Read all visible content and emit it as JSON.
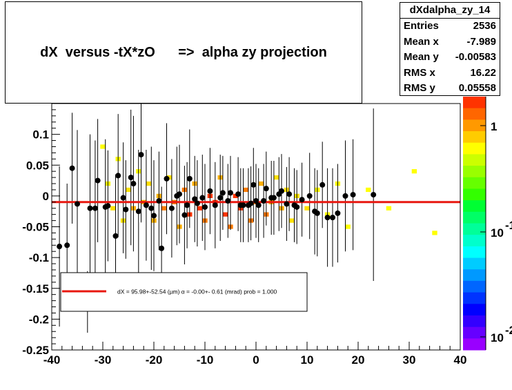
{
  "title": {
    "left": "dX  versus -tX*zO",
    "arrow": "=>",
    "right": "alpha zy projection"
  },
  "stats": {
    "name": "dXdalpha_zy_14",
    "rows": [
      {
        "label": "Entries",
        "value": "2536"
      },
      {
        "label": "Mean x",
        "value": "-7.989"
      },
      {
        "label": "Mean y",
        "value": "-0.00583"
      },
      {
        "label": "RMS x",
        "value": "16.22"
      },
      {
        "label": "RMS y",
        "value": "0.05558"
      }
    ]
  },
  "legend": {
    "text": "dX =   95.98+-52.54 (µm) α =   -0.00+- 0.61 (mrad) prob = 1.000"
  },
  "colors": {
    "fit_line": "#e8170f",
    "points": "#000000",
    "heat_low": "#ffff00",
    "heat_high": "#ff3300"
  },
  "colorbar": {
    "labels": [
      "1",
      "10",
      "10"
    ],
    "exponents": [
      "",
      "-1",
      "-2"
    ]
  },
  "chart_data": {
    "type": "scatter",
    "xlim": [
      -40,
      40
    ],
    "ylim": [
      -0.25,
      0.15
    ],
    "x_ticks": [
      "-40",
      "-30",
      "-20",
      "-10",
      "0",
      "10",
      "20",
      "30",
      "40"
    ],
    "y_ticks": [
      "-0.25",
      "-0.2",
      "-0.15",
      "-0.1",
      "-0.05",
      "0",
      "0.05",
      "0.1"
    ],
    "fit": {
      "slope": 0,
      "intercept": -0.01
    },
    "profile_points": [
      {
        "x": -38.5,
        "y": -0.082,
        "err": 0.13
      },
      {
        "x": -37.0,
        "y": -0.08,
        "err": 0.1
      },
      {
        "x": -36.0,
        "y": 0.045,
        "err": 0.09
      },
      {
        "x": -35.0,
        "y": -0.013,
        "err": 0.12
      },
      {
        "x": -33.0,
        "y": -0.172,
        "err": 0.05
      },
      {
        "x": -32.5,
        "y": -0.02,
        "err": 0.12
      },
      {
        "x": -31.5,
        "y": -0.02,
        "err": 0.11
      },
      {
        "x": -31.0,
        "y": 0.025,
        "err": 0.1
      },
      {
        "x": -29.5,
        "y": -0.018,
        "err": 0.11
      },
      {
        "x": -29.0,
        "y": -0.016,
        "err": 0.09
      },
      {
        "x": -27.5,
        "y": -0.065,
        "err": 0.1
      },
      {
        "x": -27.0,
        "y": 0.033,
        "err": 0.1
      },
      {
        "x": -26.0,
        "y": -0.003,
        "err": 0.09
      },
      {
        "x": -25.5,
        "y": -0.022,
        "err": 0.08
      },
      {
        "x": -24.5,
        "y": 0.03,
        "err": 0.11
      },
      {
        "x": -24.0,
        "y": 0.02,
        "err": 0.11
      },
      {
        "x": -23.0,
        "y": -0.025,
        "err": 0.1
      },
      {
        "x": -22.5,
        "y": 0.067,
        "err": 0.11
      },
      {
        "x": -21.5,
        "y": -0.015,
        "err": 0.09
      },
      {
        "x": -20.5,
        "y": -0.02,
        "err": 0.1
      },
      {
        "x": -20.0,
        "y": -0.032,
        "err": 0.09
      },
      {
        "x": -19.0,
        "y": -0.008,
        "err": 0.08
      },
      {
        "x": -18.5,
        "y": -0.085,
        "err": 0.1
      },
      {
        "x": -17.5,
        "y": 0.028,
        "err": 0.09
      },
      {
        "x": -16.5,
        "y": -0.02,
        "err": 0.08
      },
      {
        "x": -15.5,
        "y": 0.0,
        "err": 0.08
      },
      {
        "x": -15.0,
        "y": 0.003,
        "err": 0.08
      },
      {
        "x": -14.0,
        "y": -0.031,
        "err": 0.08
      },
      {
        "x": -13.5,
        "y": -0.015,
        "err": 0.07
      },
      {
        "x": -13.0,
        "y": 0.028,
        "err": 0.08
      },
      {
        "x": -12.0,
        "y": -0.005,
        "err": 0.07
      },
      {
        "x": -11.5,
        "y": -0.012,
        "err": 0.07
      },
      {
        "x": -10.5,
        "y": -0.003,
        "err": 0.07
      },
      {
        "x": -10.0,
        "y": -0.018,
        "err": 0.07
      },
      {
        "x": -9.0,
        "y": 0.008,
        "err": 0.07
      },
      {
        "x": -8.0,
        "y": -0.015,
        "err": 0.07
      },
      {
        "x": -7.0,
        "y": -0.003,
        "err": 0.07
      },
      {
        "x": -6.5,
        "y": 0.005,
        "err": 0.06
      },
      {
        "x": -5.5,
        "y": -0.008,
        "err": 0.06
      },
      {
        "x": -5.0,
        "y": 0.005,
        "err": 0.06
      },
      {
        "x": -3.5,
        "y": 0.003,
        "err": 0.06
      },
      {
        "x": -3.0,
        "y": -0.015,
        "err": 0.06
      },
      {
        "x": -2.5,
        "y": -0.015,
        "err": 0.06
      },
      {
        "x": -1.5,
        "y": -0.015,
        "err": 0.06
      },
      {
        "x": -1.0,
        "y": -0.012,
        "err": 0.06
      },
      {
        "x": -0.5,
        "y": 0.018,
        "err": 0.06
      },
      {
        "x": 0.0,
        "y": -0.008,
        "err": 0.06
      },
      {
        "x": 0.5,
        "y": -0.015,
        "err": 0.06
      },
      {
        "x": 1.5,
        "y": -0.008,
        "err": 0.06
      },
      {
        "x": 2.0,
        "y": 0.012,
        "err": 0.06
      },
      {
        "x": 3.0,
        "y": -0.003,
        "err": 0.06
      },
      {
        "x": 3.5,
        "y": -0.003,
        "err": 0.06
      },
      {
        "x": 4.5,
        "y": 0.003,
        "err": 0.06
      },
      {
        "x": 5.0,
        "y": 0.008,
        "err": 0.06
      },
      {
        "x": 6.0,
        "y": -0.013,
        "err": 0.06
      },
      {
        "x": 6.5,
        "y": 0.003,
        "err": 0.06
      },
      {
        "x": 7.5,
        "y": -0.015,
        "err": 0.06
      },
      {
        "x": 8.0,
        "y": -0.018,
        "err": 0.06
      },
      {
        "x": 9.0,
        "y": -0.006,
        "err": 0.06
      },
      {
        "x": 10.5,
        "y": 0.0,
        "err": 0.07
      },
      {
        "x": 11.5,
        "y": -0.025,
        "err": 0.07
      },
      {
        "x": 12.0,
        "y": -0.028,
        "err": 0.07
      },
      {
        "x": 13.0,
        "y": 0.018,
        "err": 0.07
      },
      {
        "x": 14.0,
        "y": -0.035,
        "err": 0.08
      },
      {
        "x": 15.0,
        "y": -0.035,
        "err": 0.08
      },
      {
        "x": 16.0,
        "y": -0.028,
        "err": 0.08
      },
      {
        "x": 17.5,
        "y": 0.0,
        "err": 0.09
      },
      {
        "x": 19.0,
        "y": 0.002,
        "err": 0.09
      },
      {
        "x": 23.0,
        "y": 0.002,
        "err": 0.14
      }
    ],
    "heatmap_cells": [
      {
        "x": -30,
        "y": 0.08,
        "v": 1
      },
      {
        "x": -29,
        "y": 0.02,
        "v": 1
      },
      {
        "x": -28,
        "y": -0.02,
        "v": 2
      },
      {
        "x": -27,
        "y": 0.06,
        "v": 1
      },
      {
        "x": -26,
        "y": -0.04,
        "v": 2
      },
      {
        "x": -25,
        "y": 0.01,
        "v": 2
      },
      {
        "x": -24,
        "y": -0.02,
        "v": 3
      },
      {
        "x": -23,
        "y": 0.04,
        "v": 1
      },
      {
        "x": -22,
        "y": -0.01,
        "v": 3
      },
      {
        "x": -21,
        "y": 0.02,
        "v": 2
      },
      {
        "x": -20,
        "y": -0.04,
        "v": 3
      },
      {
        "x": -19,
        "y": 0.0,
        "v": 3
      },
      {
        "x": -18,
        "y": -0.02,
        "v": 4
      },
      {
        "x": -17,
        "y": 0.03,
        "v": 2
      },
      {
        "x": -16,
        "y": -0.01,
        "v": 4
      },
      {
        "x": -15,
        "y": -0.05,
        "v": 3
      },
      {
        "x": -14,
        "y": 0.01,
        "v": 4
      },
      {
        "x": -13,
        "y": -0.03,
        "v": 5
      },
      {
        "x": -12,
        "y": 0.02,
        "v": 3
      },
      {
        "x": -11,
        "y": -0.02,
        "v": 5
      },
      {
        "x": -10,
        "y": -0.04,
        "v": 4
      },
      {
        "x": -9,
        "y": 0.0,
        "v": 5
      },
      {
        "x": -8,
        "y": -0.01,
        "v": 5
      },
      {
        "x": -7,
        "y": 0.03,
        "v": 3
      },
      {
        "x": -6,
        "y": -0.03,
        "v": 5
      },
      {
        "x": -5,
        "y": -0.05,
        "v": 4
      },
      {
        "x": -4,
        "y": 0.0,
        "v": 5
      },
      {
        "x": -3,
        "y": -0.02,
        "v": 5
      },
      {
        "x": -2,
        "y": 0.01,
        "v": 4
      },
      {
        "x": -1,
        "y": -0.04,
        "v": 4
      },
      {
        "x": 0,
        "y": -0.01,
        "v": 4
      },
      {
        "x": 1,
        "y": 0.02,
        "v": 3
      },
      {
        "x": 2,
        "y": -0.03,
        "v": 4
      },
      {
        "x": 3,
        "y": -0.01,
        "v": 3
      },
      {
        "x": 4,
        "y": 0.03,
        "v": 2
      },
      {
        "x": 5,
        "y": -0.02,
        "v": 3
      },
      {
        "x": 6,
        "y": 0.01,
        "v": 2
      },
      {
        "x": 7,
        "y": -0.04,
        "v": 2
      },
      {
        "x": 8,
        "y": 0.0,
        "v": 2
      },
      {
        "x": 10,
        "y": -0.02,
        "v": 2
      },
      {
        "x": 12,
        "y": 0.01,
        "v": 1
      },
      {
        "x": 14,
        "y": -0.03,
        "v": 1
      },
      {
        "x": 16,
        "y": 0.02,
        "v": 1
      },
      {
        "x": 18,
        "y": -0.05,
        "v": 1
      },
      {
        "x": 22,
        "y": 0.01,
        "v": 1
      },
      {
        "x": 26,
        "y": -0.02,
        "v": 1
      },
      {
        "x": 31,
        "y": 0.04,
        "v": 1
      },
      {
        "x": 35,
        "y": -0.06,
        "v": 1
      }
    ]
  }
}
